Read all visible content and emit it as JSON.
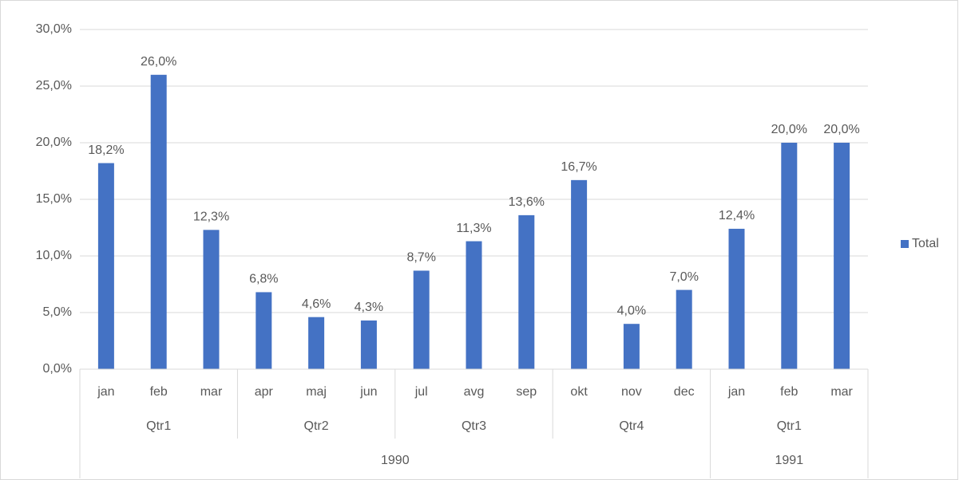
{
  "chart_data": {
    "type": "bar",
    "years": [
      {
        "label": "1990",
        "quarters": [
          {
            "label": "Qtr1",
            "categories": [
              "jan",
              "feb",
              "mar"
            ]
          },
          {
            "label": "Qtr2",
            "categories": [
              "apr",
              "maj",
              "jun"
            ]
          },
          {
            "label": "Qtr3",
            "categories": [
              "jul",
              "avg",
              "sep"
            ]
          },
          {
            "label": "Qtr4",
            "categories": [
              "okt",
              "nov",
              "dec"
            ]
          }
        ]
      },
      {
        "label": "1991",
        "quarters": [
          {
            "label": "Qtr1",
            "categories": [
              "jan",
              "feb",
              "mar"
            ]
          }
        ]
      }
    ],
    "series": [
      {
        "name": "Total",
        "color": "#4472c4",
        "values": [
          18.2,
          26.0,
          12.3,
          6.8,
          4.6,
          4.3,
          8.7,
          11.3,
          13.6,
          16.7,
          4.0,
          7.0,
          12.4,
          20.0,
          20.0
        ],
        "value_labels": [
          "18,2%",
          "26,0%",
          "12,3%",
          "6,8%",
          "4,6%",
          "4,3%",
          "8,7%",
          "11,3%",
          "13,6%",
          "16,7%",
          "4,0%",
          "7,0%",
          "12,4%",
          "20,0%",
          "20,0%"
        ]
      }
    ],
    "ylim": [
      0,
      30
    ],
    "yticks": [
      {
        "value": 0,
        "label": "0,0%"
      },
      {
        "value": 5,
        "label": "5,0%"
      },
      {
        "value": 10,
        "label": "10,0%"
      },
      {
        "value": 15,
        "label": "15,0%"
      },
      {
        "value": 20,
        "label": "20,0%"
      },
      {
        "value": 25,
        "label": "25,0%"
      },
      {
        "value": 30,
        "label": "30,0%"
      }
    ],
    "grid": true,
    "legend": "right"
  }
}
